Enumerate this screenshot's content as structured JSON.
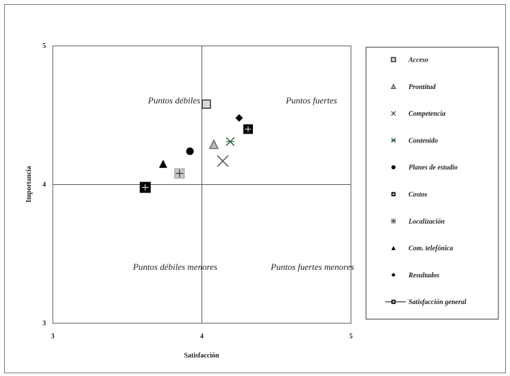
{
  "chart_data": {
    "type": "scatter",
    "title": "",
    "xlabel": "Satisfacción",
    "ylabel": "Importancia",
    "xlim": [
      3,
      5
    ],
    "ylim": [
      3,
      5
    ],
    "x_ticks": [
      "3",
      "4",
      "5"
    ],
    "y_ticks": [
      "3",
      "4",
      "5"
    ],
    "reference_lines": {
      "x": 4,
      "y": 4
    },
    "grid": false,
    "legend_position": "right",
    "quadrant_labels": {
      "top_left": "Puntos débiles",
      "top_right": "Puntos fuertes",
      "bottom_left": "Puntos débiles menores",
      "bottom_right": "Puntos fuertes menores"
    },
    "series": [
      {
        "name": "Acceso",
        "marker": "open-square",
        "color": "#333333",
        "points": [
          {
            "x": 4.03,
            "y": 4.58
          }
        ]
      },
      {
        "name": "Prontitud",
        "marker": "triangle",
        "color": "#666666",
        "points": [
          {
            "x": 4.08,
            "y": 4.29
          }
        ]
      },
      {
        "name": "Competencia",
        "marker": "x",
        "color": "#555555",
        "points": [
          {
            "x": 4.14,
            "y": 4.17
          }
        ]
      },
      {
        "name": "Contenido",
        "marker": "star",
        "color": "#2f5f3a",
        "points": [
          {
            "x": 4.19,
            "y": 4.31
          }
        ]
      },
      {
        "name": "Planes de estudio",
        "marker": "circle",
        "color": "#000000",
        "points": [
          {
            "x": 3.92,
            "y": 4.24
          }
        ]
      },
      {
        "name": "Costos",
        "marker": "square-plus",
        "color": "#000000",
        "points": [
          {
            "x": 4.31,
            "y": 4.4
          }
        ]
      },
      {
        "name": "Localización",
        "marker": "grey-square-plus",
        "color": "#999999",
        "points": [
          {
            "x": 3.85,
            "y": 4.08
          }
        ]
      },
      {
        "name": "Com. telefónica",
        "marker": "filled-triangle",
        "color": "#000000",
        "points": [
          {
            "x": 3.74,
            "y": 4.15
          }
        ]
      },
      {
        "name": "Resultados",
        "marker": "diamond",
        "color": "#000000",
        "points": [
          {
            "x": 4.25,
            "y": 4.48
          }
        ]
      },
      {
        "name": "Satisfacción general",
        "marker": "square-plus",
        "color": "#000000",
        "points": [
          {
            "x": 3.62,
            "y": 3.98
          }
        ]
      }
    ]
  }
}
